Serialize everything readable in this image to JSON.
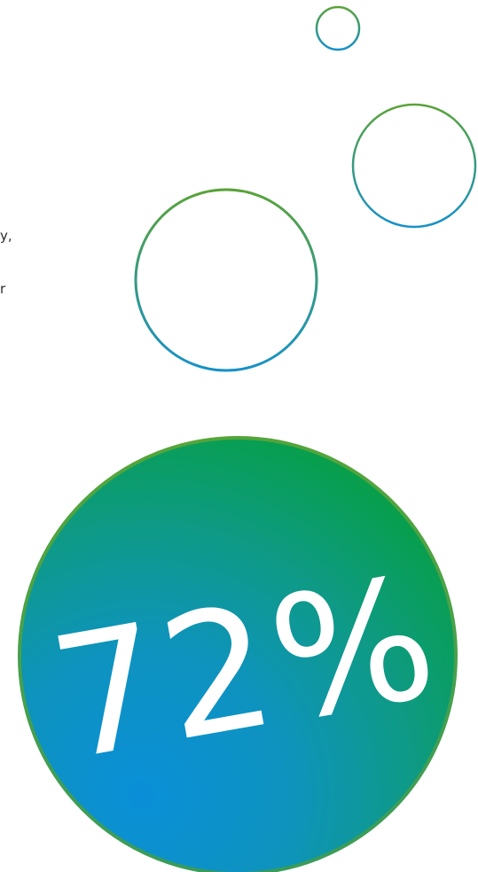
{
  "stat": {
    "value": "72%",
    "fraction": 0.72
  },
  "edge_text": {
    "line1": "y,",
    "line2": "r"
  },
  "colors": {
    "green": "#1fa24a",
    "teal": "#129a86",
    "blue": "#0a8fd0",
    "outline_green": "#59a33d",
    "outline_blue": "#1a94c9",
    "text_white": "#ffffff"
  },
  "icons": {
    "bubble_small": "bubble-outline-icon",
    "bubble_medium": "bubble-outline-icon",
    "bubble_large": "bubble-outline-icon",
    "stat_disc": "gradient-disc"
  }
}
